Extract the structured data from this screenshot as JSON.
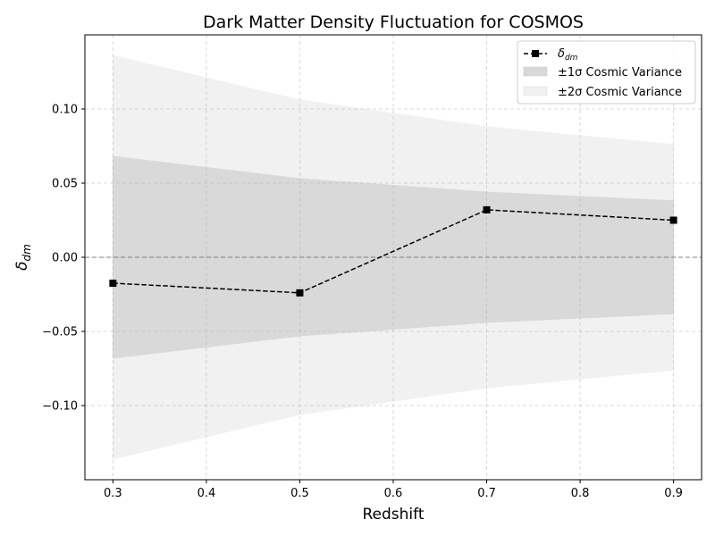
{
  "chart_data": {
    "type": "line",
    "title": "Dark Matter Density Fluctuation for COSMOS",
    "xlabel": "Redshift",
    "ylabel_main": "δ",
    "ylabel_sub": "dm",
    "xlim": [
      0.27,
      0.93
    ],
    "ylim": [
      -0.15,
      0.15
    ],
    "x_ticks": [
      0.3,
      0.4,
      0.5,
      0.6,
      0.7,
      0.8,
      0.9
    ],
    "x_tick_labels": [
      "0.3",
      "0.4",
      "0.5",
      "0.6",
      "0.7",
      "0.8",
      "0.9"
    ],
    "y_ticks": [
      -0.1,
      -0.05,
      0.0,
      0.05,
      0.1
    ],
    "y_tick_labels": [
      "−0.10",
      "−0.05",
      "0.00",
      "0.05",
      "0.10"
    ],
    "grid": true,
    "legend_position": "top-right",
    "reference_line_y": 0.0,
    "series": [
      {
        "legend_main": "δ",
        "legend_sub": "dm",
        "x": [
          0.3,
          0.5,
          0.7,
          0.9
        ],
        "y": [
          -0.0175,
          -0.024,
          0.032,
          0.025
        ],
        "color": "#000000",
        "marker": "square",
        "line_style": "dashed"
      }
    ],
    "bands": [
      {
        "name": "±2σ Cosmic Variance",
        "x": [
          0.3,
          0.5,
          0.7,
          0.9
        ],
        "upper": [
          0.136,
          0.106,
          0.088,
          0.076
        ],
        "lower": [
          -0.136,
          -0.106,
          -0.088,
          -0.076
        ],
        "color": "#f1f1f1"
      },
      {
        "name": "±1σ Cosmic Variance",
        "x": [
          0.3,
          0.5,
          0.7,
          0.9
        ],
        "upper": [
          0.068,
          0.053,
          0.044,
          0.038
        ],
        "lower": [
          -0.068,
          -0.053,
          -0.044,
          -0.038
        ],
        "color": "#d9d9d9"
      }
    ]
  }
}
